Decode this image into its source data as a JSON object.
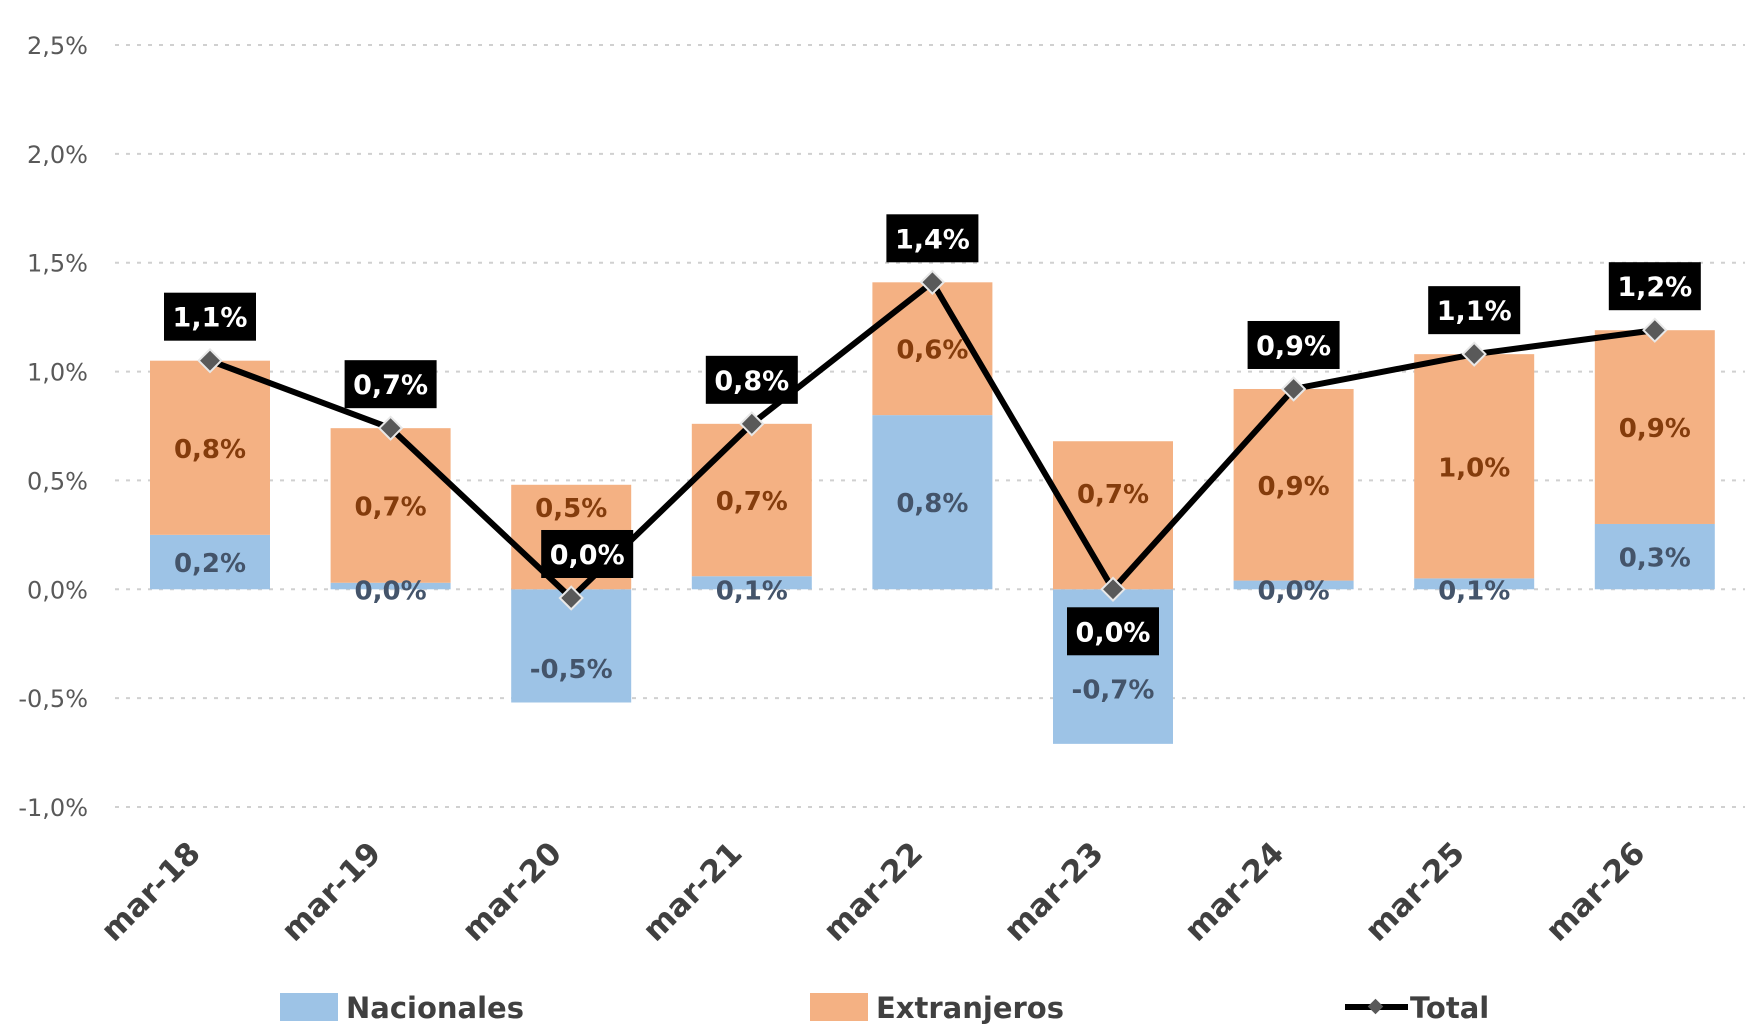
{
  "chart_data": {
    "type": "bar",
    "stacked": true,
    "title": "",
    "xlabel": "",
    "ylabel": "",
    "categories": [
      "mar-18",
      "mar-19",
      "mar-20",
      "mar-21",
      "mar-22",
      "mar-23",
      "mar-24",
      "mar-25",
      "mar-26"
    ],
    "ylim": [
      -1.0,
      2.5
    ],
    "yticks": [
      2.5,
      2.0,
      1.5,
      1.0,
      0.5,
      0.0,
      -0.5,
      -1.0
    ],
    "ytick_labels": [
      "2,5%",
      "2,0%",
      "1,5%",
      "1,0%",
      "0,5%",
      "0,0%",
      "-0,5%",
      "-1,0%"
    ],
    "grid": true,
    "legend_position": "bottom",
    "series": [
      {
        "name": "Nacionales",
        "type": "bar",
        "color": "#9dc3e6",
        "values": [
          0.25,
          0.03,
          -0.52,
          0.06,
          0.8,
          -0.71,
          0.04,
          0.05,
          0.3
        ],
        "labels": [
          "0,2%",
          "0,0%",
          "-0,5%",
          "0,1%",
          "0,8%",
          "-0,7%",
          "0,0%",
          "0,1%",
          "0,3%"
        ]
      },
      {
        "name": "Extranjeros",
        "type": "bar",
        "color": "#f4b183",
        "values": [
          0.8,
          0.71,
          0.48,
          0.7,
          0.61,
          0.68,
          0.88,
          1.03,
          0.89
        ],
        "labels": [
          "0,8%",
          "0,7%",
          "0,5%",
          "0,7%",
          "0,6%",
          "0,7%",
          "0,9%",
          "1,0%",
          "0,9%"
        ]
      },
      {
        "name": "Total",
        "type": "line",
        "color": "#000000",
        "marker_color": "#595959",
        "values": [
          1.05,
          0.74,
          -0.04,
          0.76,
          1.41,
          0.0,
          0.92,
          1.08,
          1.19
        ],
        "labels": [
          "1,1%",
          "0,7%",
          "0,0%",
          "0,8%",
          "1,4%",
          "0,0%",
          "0,9%",
          "1,1%",
          "1,2%"
        ]
      }
    ]
  }
}
